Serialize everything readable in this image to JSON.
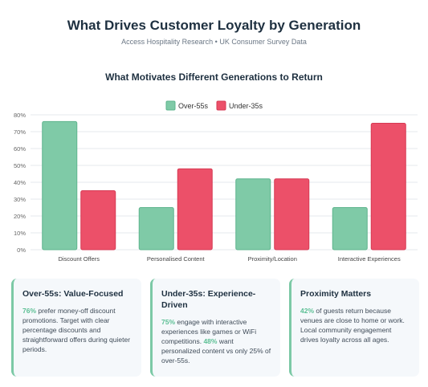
{
  "page": {
    "title": "What Drives Customer Loyalty by Generation",
    "subtitle": "Access Hospitality Research • UK Consumer Survey Data",
    "chart_title": "What Motivates Different Generations to Return"
  },
  "colors": {
    "over55": "#7fcaa7",
    "under35": "#ec5069",
    "over55_stroke": "#5eb48d",
    "under35_stroke": "#d63a54",
    "accent": "#5bbf94"
  },
  "chart_data": {
    "type": "bar",
    "title": "What Motivates Different Generations to Return",
    "categories": [
      "Discount Offers",
      "Personalised Content",
      "Proximity/Location",
      "Interactive Experiences"
    ],
    "series": [
      {
        "name": "Over-55s",
        "values": [
          76,
          25,
          42,
          25
        ]
      },
      {
        "name": "Under-35s",
        "values": [
          35,
          48,
          42,
          75
        ]
      }
    ],
    "ylim": [
      0,
      80
    ],
    "yticks": [
      "0%",
      "10%",
      "20%",
      "30%",
      "40%",
      "50%",
      "60%",
      "70%",
      "80%"
    ],
    "legend_position": "top-center",
    "grid": true
  },
  "cards": [
    {
      "title": "Over-55s: Value-Focused",
      "highlight": "76%",
      "text": " prefer money-off discount promotions. Target with clear percentage discounts and straightforward offers during quieter periods."
    },
    {
      "title": "Under-35s: Experience-Driven",
      "highlight": "75%",
      "text": " engage with interactive experiences like games or WiFi competitions. ",
      "highlight2": "48%",
      "text2": " want personalized content vs only 25% of over-55s."
    },
    {
      "title": "Proximity Matters",
      "highlight": "42%",
      "text": " of guests return because venues are close to home or work. Local community engagement drives loyalty across all ages."
    }
  ]
}
